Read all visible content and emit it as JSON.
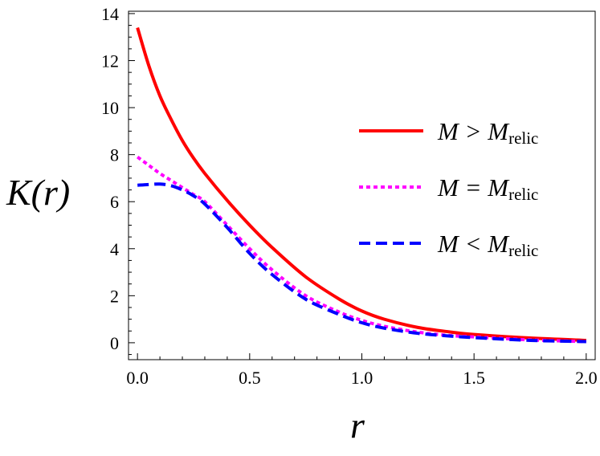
{
  "chart_data": {
    "type": "line",
    "title": "",
    "xlabel": "r",
    "ylabel": "K(r)",
    "xlim": [
      -0.04,
      2.04
    ],
    "ylim": [
      -0.72,
      14.1
    ],
    "xticks": [
      "0.0",
      "0.5",
      "1.0",
      "1.5",
      "2.0"
    ],
    "yticks": [
      "0",
      "2",
      "4",
      "6",
      "8",
      "10",
      "12",
      "14"
    ],
    "grid": false,
    "legend_position": "right",
    "x": [
      0,
      0.05,
      0.1,
      0.15,
      0.2,
      0.25,
      0.3,
      0.4,
      0.5,
      0.6,
      0.75,
      0.9,
      1.0,
      1.1,
      1.25,
      1.4,
      1.5,
      1.75,
      2.0
    ],
    "series": [
      {
        "name": "M > M_relic",
        "label_main": "M > M",
        "label_sub": "relic",
        "color": "#ff0000",
        "style": "solid",
        "values": [
          13.4,
          11.8,
          10.5,
          9.5,
          8.6,
          7.85,
          7.2,
          6.05,
          5.0,
          4.05,
          2.8,
          1.85,
          1.35,
          1.0,
          0.65,
          0.45,
          0.35,
          0.2,
          0.1
        ]
      },
      {
        "name": "M = M_relic",
        "label_main": "M = M",
        "label_sub": "relic",
        "color": "#ff00ff",
        "style": "dotted",
        "values": [
          7.9,
          7.55,
          7.2,
          6.9,
          6.6,
          6.3,
          6.0,
          5.0,
          4.0,
          3.1,
          2.0,
          1.3,
          0.95,
          0.7,
          0.45,
          0.3,
          0.25,
          0.12,
          0.05
        ]
      },
      {
        "name": "M < M_relic",
        "label_main": "M < M",
        "label_sub": "relic",
        "color": "#0000ff",
        "style": "dashed",
        "values": [
          6.7,
          6.73,
          6.75,
          6.68,
          6.5,
          6.25,
          5.9,
          4.9,
          3.8,
          2.9,
          1.85,
          1.2,
          0.85,
          0.62,
          0.4,
          0.28,
          0.22,
          0.1,
          0.05
        ]
      }
    ]
  }
}
